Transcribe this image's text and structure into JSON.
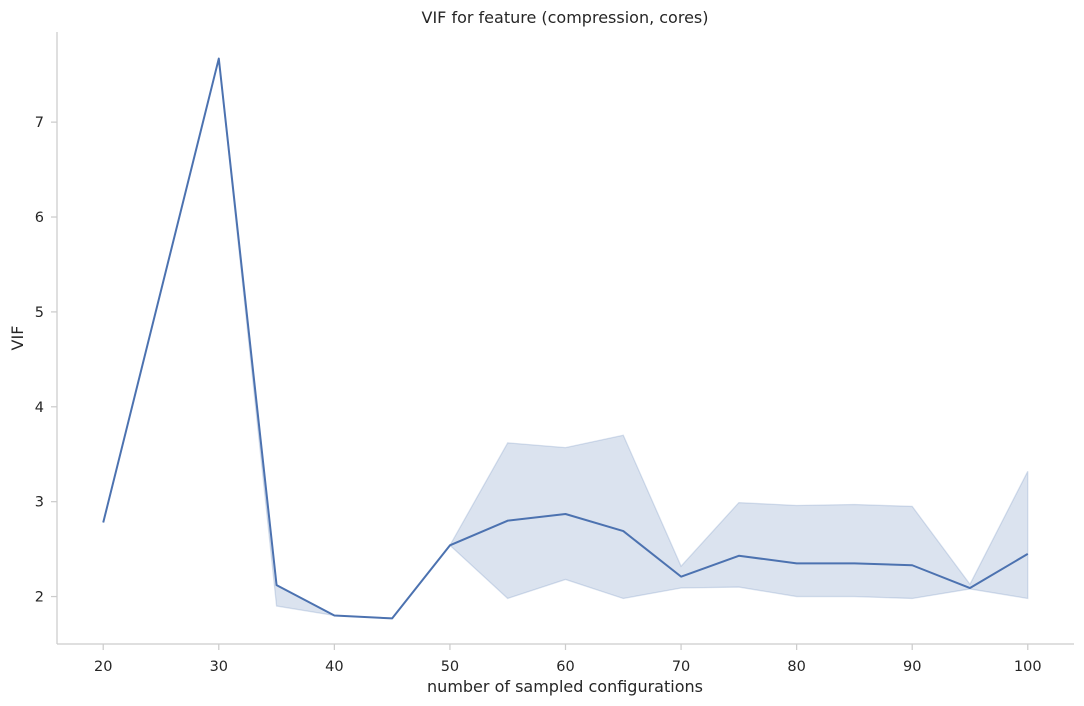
{
  "chart_data": {
    "type": "line",
    "title": "VIF for feature (compression, cores)",
    "xlabel": "number of sampled configurations",
    "ylabel": "VIF",
    "xlim": [
      16,
      104
    ],
    "ylim": [
      1.5,
      7.95
    ],
    "xticks": [
      20,
      30,
      40,
      50,
      60,
      70,
      80,
      90,
      100
    ],
    "yticks": [
      2,
      3,
      4,
      5,
      6,
      7
    ],
    "grid": false,
    "series": [
      {
        "color": "#4c72b0",
        "x": [
          20,
          30,
          35,
          40,
          45,
          50,
          55,
          60,
          65,
          70,
          75,
          80,
          85,
          90,
          95,
          100
        ],
        "y": [
          2.78,
          7.67,
          2.12,
          1.8,
          1.77,
          2.54,
          2.8,
          2.87,
          2.69,
          2.21,
          2.43,
          2.35,
          2.35,
          2.33,
          2.09,
          2.45
        ],
        "ci_lower": [
          2.78,
          7.67,
          1.9,
          1.8,
          1.77,
          2.54,
          1.98,
          2.18,
          1.98,
          2.09,
          2.1,
          2.0,
          2.0,
          1.98,
          2.08,
          1.98
        ],
        "ci_upper": [
          2.78,
          7.67,
          2.12,
          1.8,
          1.77,
          2.54,
          3.62,
          3.57,
          3.7,
          2.32,
          2.99,
          2.96,
          2.97,
          2.95,
          2.13,
          3.32
        ]
      }
    ]
  }
}
